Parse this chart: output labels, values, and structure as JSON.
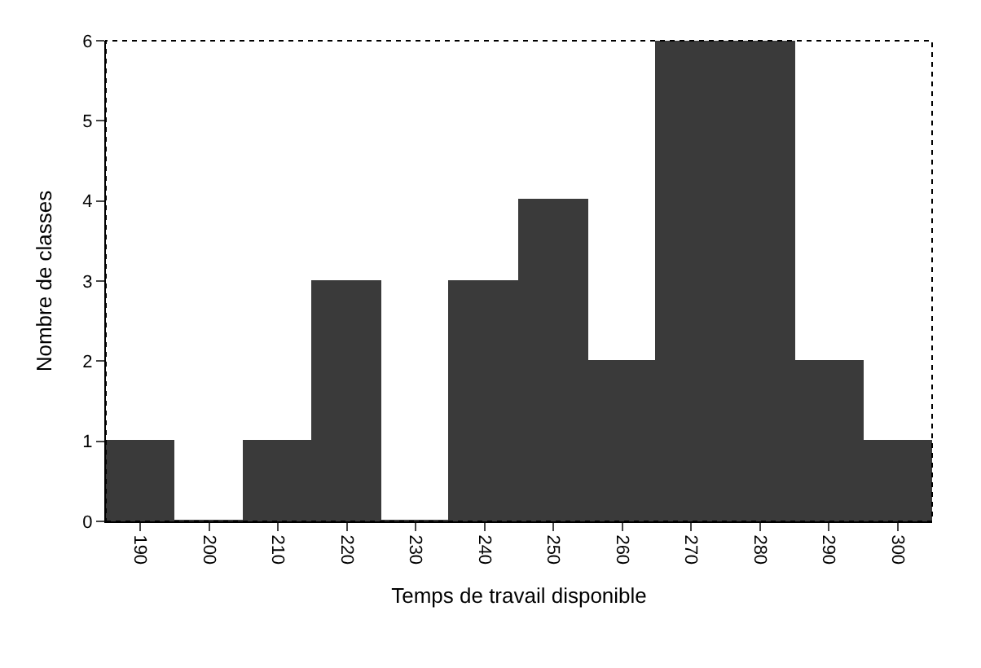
{
  "chart_data": {
    "type": "bar",
    "xlabel": "Temps de travail disponible",
    "ylabel": "Nombre de classes",
    "categories": [
      "190",
      "200",
      "210",
      "220",
      "230",
      "240",
      "250",
      "260",
      "270",
      "280",
      "290",
      "300"
    ],
    "values": [
      1,
      0,
      1,
      3,
      0,
      3,
      4,
      2,
      6,
      6,
      2,
      1
    ],
    "color": "#3a3a3a",
    "ylim": [
      0,
      6
    ],
    "yticks": [
      0,
      1,
      2,
      3,
      4,
      5,
      6
    ]
  }
}
